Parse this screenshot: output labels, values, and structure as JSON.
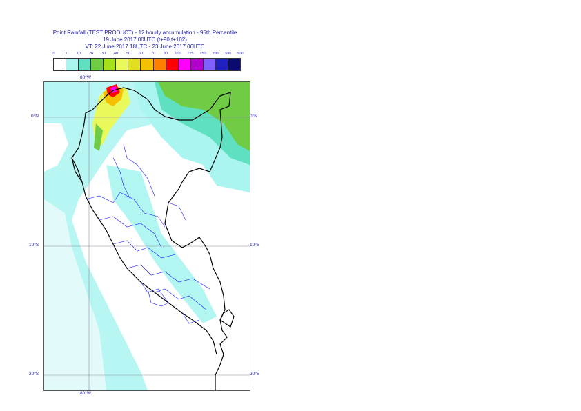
{
  "header": {
    "title_line1": "Point Rainfall (TEST PRODUCT) - 12 hourly accumulation - 95th Percentile",
    "title_line2": "19 June 2017 00UTC (t+90,t+102)",
    "title_line3": "VT: 22 June 2017 18UTC - 23 June 2017 06UTC"
  },
  "legend": {
    "ticks": [
      "0",
      "1",
      "10",
      "20",
      "30",
      "40",
      "50",
      "60",
      "70",
      "80",
      "100",
      "125",
      "150",
      "200",
      "300",
      "500"
    ],
    "colors": [
      "#ffffff",
      "#aaf5f0",
      "#5fe0c0",
      "#6fcc44",
      "#a6e01c",
      "#e9f85a",
      "#e0e020",
      "#f5c000",
      "#ff8000",
      "#ff0000",
      "#ff00ff",
      "#b000cc",
      "#8060ff",
      "#2020c0",
      "#0a0a70"
    ]
  },
  "map": {
    "lat_labels": [
      "0°N",
      "10°S",
      "20°S"
    ],
    "lon_label_top": "80°W",
    "lon_label_bottom": "80°W"
  }
}
